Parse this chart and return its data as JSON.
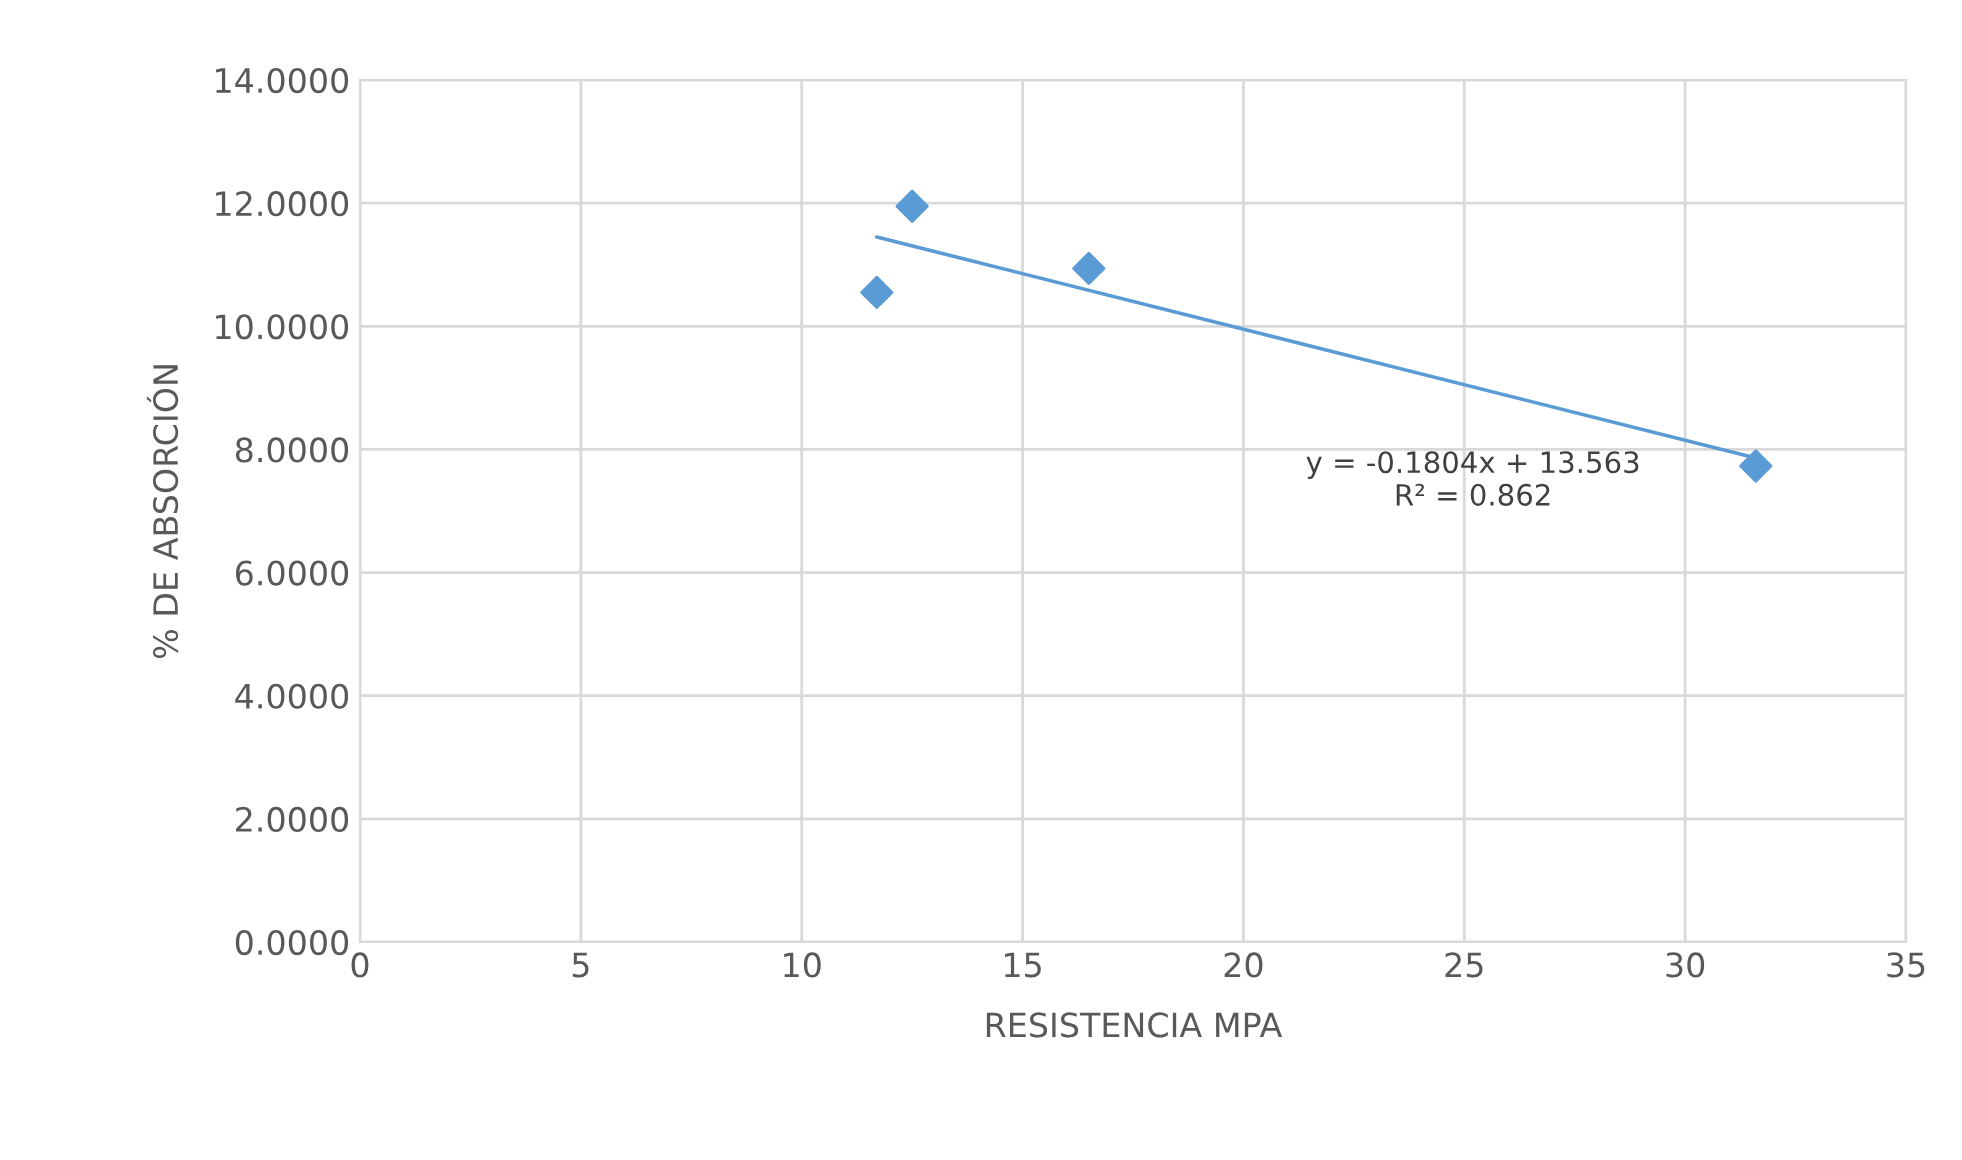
{
  "chart_data": {
    "type": "scatter",
    "xlabel": "RESISTENCIA MPA",
    "ylabel": "% DE ABSORCIÓN",
    "xlim": [
      0,
      35
    ],
    "xticks": [
      0,
      5,
      10,
      15,
      20,
      25,
      30,
      35
    ],
    "ylim": [
      0,
      14
    ],
    "yticks": [
      {
        "value": 0,
        "label": "0.0000"
      },
      {
        "value": 2,
        "label": "2.0000"
      },
      {
        "value": 4,
        "label": "4.0000"
      },
      {
        "value": 6,
        "label": "6.0000"
      },
      {
        "value": 8,
        "label": "8.0000"
      },
      {
        "value": 10,
        "label": "10.0000"
      },
      {
        "value": 12,
        "label": "12.0000"
      },
      {
        "value": 14,
        "label": "14.0000"
      }
    ],
    "grid": true,
    "marker": "diamond",
    "legend": false,
    "series": [
      {
        "color": "#5b9bd5",
        "x": [
          11.7,
          12.5,
          16.5,
          31.6
        ],
        "values": [
          10.55,
          11.95,
          10.94,
          7.73
        ]
      },
      {
        "type": "line",
        "color": "#5b9bd5",
        "x": [
          11.7,
          31.6
        ],
        "values": [
          11.45,
          7.86
        ],
        "line_style": "solid",
        "marker": "none"
      }
    ],
    "annotations": [
      "y = -0.1804x + 13.563\nR² = 0.862"
    ]
  }
}
